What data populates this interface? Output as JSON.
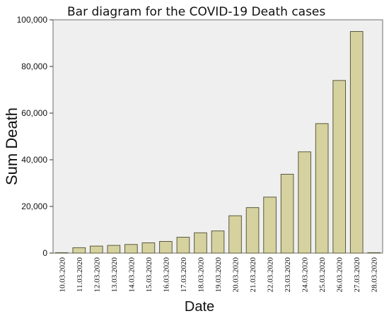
{
  "chart_data": {
    "type": "bar",
    "title": "Bar diagram for the COVID-19 Death cases",
    "xlabel": "Date",
    "ylabel": "Sum Death",
    "ylim": [
      0,
      100000
    ],
    "yticks": [
      0,
      20000,
      40000,
      60000,
      80000,
      100000
    ],
    "ytick_labels": [
      "0",
      "20,000",
      "40,000",
      "60,000",
      "80,000",
      "100,000"
    ],
    "categories": [
      "10.03.2020",
      "11.03.2020",
      "12.03.2020",
      "13.03.2020",
      "14.03.2020",
      "15.03.2020",
      "16.03.2020",
      "17.03.2020",
      "18.03.2020",
      "19.03.2020",
      "20.03.2020",
      "21.03.2020",
      "22.03.2020",
      "23.03.2020",
      "24.03.2020",
      "25.03.2020",
      "26.03.2020",
      "27.03.2020",
      "28.03.2020"
    ],
    "values": [
      0,
      2300,
      3000,
      3300,
      3700,
      4400,
      5000,
      6800,
      8700,
      9500,
      16000,
      19500,
      24000,
      33800,
      43400,
      55500,
      74000,
      95000,
      0
    ],
    "grid": false,
    "legend": "none",
    "colors": {
      "bar_fill": "#d6d2a0",
      "bar_stroke": "#5a5a3c",
      "plot_background": "#efefef",
      "plot_border": "#6e6e6e"
    }
  }
}
